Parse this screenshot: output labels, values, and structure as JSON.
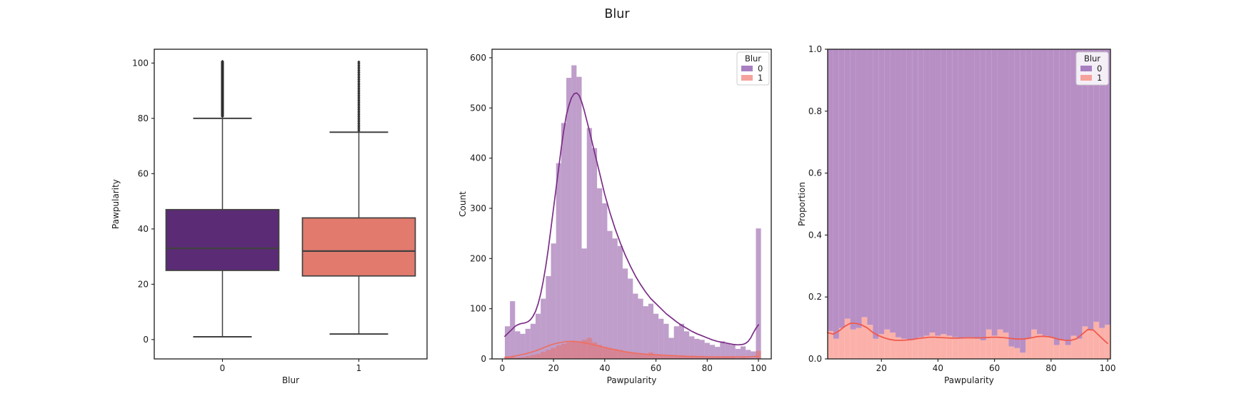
{
  "figure": {
    "title": "Blur",
    "background": "#ffffff"
  },
  "style": {
    "spine_color": "#1a1a1a",
    "text_color": "#1a1a1a",
    "box_edge_color": "#414141",
    "outlier_color": "#2f2f2f",
    "legend_border": "#cccccc",
    "legend_bg": "rgba(255,255,255,0.85)"
  },
  "chart_data": [
    {
      "id": "boxplot",
      "type": "box",
      "xlabel": "Blur",
      "ylabel": "Pawpularity",
      "categories": [
        "0",
        "1"
      ],
      "yticks": {
        "values": [
          0,
          20,
          40,
          60,
          80,
          100
        ],
        "labels": [
          "0",
          "20",
          "40",
          "60",
          "80",
          "100"
        ]
      },
      "ylim": [
        -7,
        105
      ],
      "grid": false,
      "boxes": [
        {
          "category": "0",
          "fill": "#5c2b76",
          "whisker_low": 1,
          "q1": 25,
          "median": 33,
          "q3": 47,
          "whisker_high": 80,
          "outliers": {
            "min": 80.7,
            "max": 100.6,
            "count": 120
          }
        },
        {
          "category": "1",
          "fill": "#e27a6e",
          "whisker_low": 2,
          "q1": 23,
          "median": 32,
          "q3": 44,
          "whisker_high": 75,
          "outliers": {
            "min": 75.6,
            "max": 100.4,
            "count": 40
          }
        }
      ]
    },
    {
      "id": "histogram-kde",
      "type": "bar",
      "subtype": "histogram+kde",
      "xlabel": "Pawpularity",
      "ylabel": "Count",
      "xticks": {
        "values": [
          0,
          20,
          40,
          60,
          80,
          100
        ],
        "labels": [
          "0",
          "20",
          "40",
          "60",
          "80",
          "100"
        ]
      },
      "yticks": {
        "values": [
          0,
          100,
          200,
          300,
          400,
          500,
          600
        ],
        "labels": [
          "0",
          "100",
          "200",
          "300",
          "400",
          "500",
          "600"
        ]
      },
      "xlim": [
        -4,
        105
      ],
      "ylim": [
        0,
        617
      ],
      "bin_start": 1,
      "bin_width": 2,
      "grid": false,
      "legend": {
        "title": "Blur",
        "position": "upper right",
        "entries": [
          {
            "label": "0",
            "color": "#a87fc0"
          },
          {
            "label": "1",
            "color": "#f4a29b"
          }
        ]
      },
      "series": [
        {
          "name": "0",
          "fill": "rgba(139,78,160,0.55)",
          "kde_color": "#7a2e86",
          "counts": [
            65,
            115,
            55,
            50,
            60,
            70,
            90,
            120,
            165,
            230,
            390,
            470,
            560,
            585,
            562,
            220,
            460,
            420,
            340,
            310,
            255,
            240,
            225,
            180,
            160,
            130,
            120,
            105,
            110,
            90,
            80,
            70,
            42,
            65,
            70,
            55,
            45,
            40,
            38,
            32,
            28,
            24,
            35,
            30,
            28,
            20,
            25,
            18,
            15,
            260
          ]
        },
        {
          "name": "1",
          "fill": "rgba(235,105,95,0.5)",
          "kde_color": "#ee6f62",
          "counts": [
            5,
            4,
            3,
            4,
            6,
            8,
            10,
            14,
            18,
            22,
            27,
            30,
            33,
            36,
            35,
            38,
            42,
            33,
            28,
            24,
            22,
            20,
            18,
            15,
            14,
            12,
            11,
            10,
            13,
            9,
            8,
            8,
            6,
            6,
            7,
            5,
            4,
            4,
            5,
            3,
            3,
            3,
            4,
            3,
            3,
            2,
            3,
            2,
            2,
            16
          ]
        }
      ],
      "kde": [
        {
          "name": "0",
          "points": [
            [
              1,
              45
            ],
            [
              2,
              50
            ],
            [
              3,
              55
            ],
            [
              4,
              60
            ],
            [
              5,
              65
            ],
            [
              6,
              68
            ],
            [
              7,
              70
            ],
            [
              8,
              71
            ],
            [
              9,
              72
            ],
            [
              10,
              74
            ],
            [
              11,
              78
            ],
            [
              12,
              85
            ],
            [
              13,
              95
            ],
            [
              14,
              110
            ],
            [
              15,
              130
            ],
            [
              16,
              155
            ],
            [
              17,
              185
            ],
            [
              18,
              220
            ],
            [
              19,
              260
            ],
            [
              20,
              300
            ],
            [
              21,
              340
            ],
            [
              22,
              380
            ],
            [
              23,
              420
            ],
            [
              24,
              455
            ],
            [
              25,
              485
            ],
            [
              26,
              505
            ],
            [
              27,
              520
            ],
            [
              28,
              528
            ],
            [
              29,
              530
            ],
            [
              30,
              525
            ],
            [
              31,
              512
            ],
            [
              32,
              495
            ],
            [
              33,
              475
            ],
            [
              34,
              455
            ],
            [
              36,
              412
            ],
            [
              38,
              370
            ],
            [
              40,
              328
            ],
            [
              42,
              292
            ],
            [
              44,
              260
            ],
            [
              46,
              232
            ],
            [
              48,
              207
            ],
            [
              50,
              185
            ],
            [
              52,
              165
            ],
            [
              54,
              148
            ],
            [
              56,
              133
            ],
            [
              58,
              120
            ],
            [
              60,
              110
            ],
            [
              62,
              100
            ],
            [
              64,
              90
            ],
            [
              66,
              82
            ],
            [
              68,
              74
            ],
            [
              70,
              67
            ],
            [
              72,
              61
            ],
            [
              74,
              55
            ],
            [
              76,
              50
            ],
            [
              78,
              46
            ],
            [
              80,
              42
            ],
            [
              82,
              38
            ],
            [
              84,
              35
            ],
            [
              86,
              33
            ],
            [
              88,
              31
            ],
            [
              90,
              29
            ],
            [
              92,
              28
            ],
            [
              94,
              29
            ],
            [
              95,
              31
            ],
            [
              96,
              35
            ],
            [
              97,
              42
            ],
            [
              98,
              52
            ],
            [
              99,
              61
            ],
            [
              100,
              68
            ]
          ]
        },
        {
          "name": "1",
          "points": [
            [
              1,
              3
            ],
            [
              3,
              4
            ],
            [
              5,
              6
            ],
            [
              7,
              8
            ],
            [
              9,
              10
            ],
            [
              11,
              13
            ],
            [
              13,
              16
            ],
            [
              15,
              20
            ],
            [
              17,
              24
            ],
            [
              19,
              28
            ],
            [
              21,
              31
            ],
            [
              23,
              33
            ],
            [
              25,
              34.5
            ],
            [
              27,
              35
            ],
            [
              29,
              34.5
            ],
            [
              31,
              33
            ],
            [
              33,
              31
            ],
            [
              35,
              29
            ],
            [
              37,
              26.5
            ],
            [
              39,
              24
            ],
            [
              41,
              21.5
            ],
            [
              43,
              19
            ],
            [
              45,
              17
            ],
            [
              47,
              15
            ],
            [
              49,
              13.5
            ],
            [
              51,
              12
            ],
            [
              53,
              11
            ],
            [
              55,
              10
            ],
            [
              57,
              9
            ],
            [
              59,
              8.5
            ],
            [
              61,
              8
            ],
            [
              63,
              7.5
            ],
            [
              65,
              7
            ],
            [
              67,
              6.5
            ],
            [
              69,
              6
            ],
            [
              71,
              5.5
            ],
            [
              73,
              5
            ],
            [
              75,
              5
            ],
            [
              77,
              4.5
            ],
            [
              79,
              4.5
            ],
            [
              81,
              4
            ],
            [
              83,
              4
            ],
            [
              85,
              4
            ],
            [
              87,
              4
            ],
            [
              89,
              4
            ],
            [
              91,
              4
            ],
            [
              93,
              4
            ],
            [
              95,
              4
            ],
            [
              97,
              4.5
            ],
            [
              99,
              5
            ],
            [
              100,
              5
            ]
          ]
        }
      ]
    },
    {
      "id": "proportion",
      "type": "area",
      "subtype": "stacked-proportion-histogram",
      "xlabel": "Pawpularity",
      "ylabel": "Proportion",
      "xticks": {
        "values": [
          20,
          40,
          60,
          80,
          100
        ],
        "labels": [
          "20",
          "40",
          "60",
          "80",
          "100"
        ]
      },
      "yticks": {
        "values": [
          0,
          0.2,
          0.4,
          0.6,
          0.8,
          1.0
        ],
        "labels": [
          "0.0",
          "0.2",
          "0.4",
          "0.6",
          "0.8",
          "1.0"
        ]
      },
      "xlim": [
        1,
        101
      ],
      "ylim": [
        0,
        1
      ],
      "bin_start": 1,
      "bin_width": 2,
      "grid": false,
      "legend": {
        "title": "Blur",
        "position": "upper right",
        "entries": [
          {
            "label": "0",
            "color": "#a87fc0"
          },
          {
            "label": "1",
            "color": "#f4a29b"
          }
        ]
      },
      "colors": {
        "blur0_fill": "#b78fc5",
        "blur1_fill": "#fbb1a9",
        "line": "#ef5a4f"
      },
      "blur1_proportion_bins": [
        0.09,
        0.065,
        0.1,
        0.13,
        0.095,
        0.1,
        0.135,
        0.11,
        0.065,
        0.08,
        0.095,
        0.085,
        0.07,
        0.065,
        0.06,
        0.065,
        0.07,
        0.075,
        0.085,
        0.075,
        0.08,
        0.075,
        0.07,
        0.065,
        0.07,
        0.07,
        0.065,
        0.06,
        0.095,
        0.075,
        0.095,
        0.085,
        0.04,
        0.035,
        0.02,
        0.065,
        0.095,
        0.08,
        0.075,
        0.07,
        0.045,
        0.06,
        0.045,
        0.075,
        0.065,
        0.105,
        0.095,
        0.12,
        0.1,
        0.11
      ],
      "blur1_trend_line": [
        [
          1,
          0.085
        ],
        [
          3,
          0.08
        ],
        [
          5,
          0.09
        ],
        [
          7,
          0.105
        ],
        [
          9,
          0.115
        ],
        [
          11,
          0.115
        ],
        [
          13,
          0.11
        ],
        [
          15,
          0.1
        ],
        [
          17,
          0.085
        ],
        [
          19,
          0.075
        ],
        [
          21,
          0.068
        ],
        [
          23,
          0.063
        ],
        [
          25,
          0.06
        ],
        [
          27,
          0.06
        ],
        [
          29,
          0.061
        ],
        [
          31,
          0.063
        ],
        [
          33,
          0.066
        ],
        [
          35,
          0.068
        ],
        [
          37,
          0.07
        ],
        [
          39,
          0.07
        ],
        [
          41,
          0.069
        ],
        [
          43,
          0.068
        ],
        [
          45,
          0.067
        ],
        [
          47,
          0.067
        ],
        [
          49,
          0.068
        ],
        [
          51,
          0.068
        ],
        [
          53,
          0.068
        ],
        [
          55,
          0.068
        ],
        [
          57,
          0.069
        ],
        [
          59,
          0.07
        ],
        [
          61,
          0.07
        ],
        [
          63,
          0.069
        ],
        [
          65,
          0.067
        ],
        [
          67,
          0.065
        ],
        [
          69,
          0.064
        ],
        [
          71,
          0.065
        ],
        [
          73,
          0.068
        ],
        [
          75,
          0.072
        ],
        [
          77,
          0.073
        ],
        [
          79,
          0.072
        ],
        [
          81,
          0.068
        ],
        [
          83,
          0.063
        ],
        [
          85,
          0.06
        ],
        [
          87,
          0.06
        ],
        [
          89,
          0.065
        ],
        [
          91,
          0.08
        ],
        [
          93,
          0.095
        ],
        [
          95,
          0.093
        ],
        [
          97,
          0.075
        ],
        [
          99,
          0.058
        ],
        [
          100,
          0.05
        ]
      ]
    }
  ]
}
